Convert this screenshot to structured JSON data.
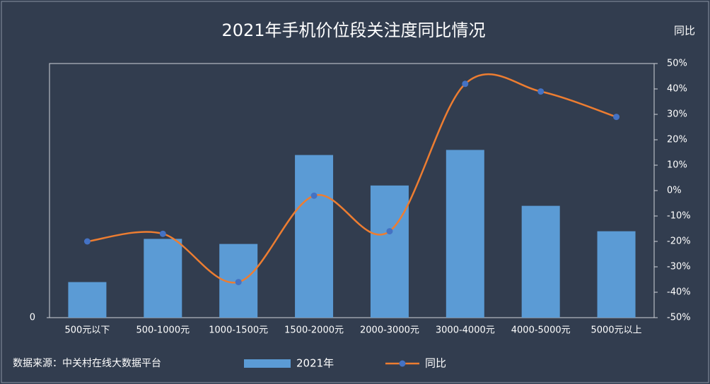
{
  "chart_data": {
    "type": "bar-line",
    "title": "2021年手机价位段关注度同比情况",
    "y2label": "同比",
    "source": "数据来源：中关村在线大数据平台",
    "categories": [
      "500元以下",
      "500-1000元",
      "1000-1500元",
      "1500-2000元",
      "2000-3000元",
      "3000-4000元",
      "4000-5000元",
      "5000元以上"
    ],
    "series": [
      {
        "name": "2021年",
        "type": "bar",
        "color": "#5b9bd5",
        "values": [
          14,
          31,
          29,
          64,
          52,
          66,
          44,
          34
        ]
      },
      {
        "name": "同比",
        "type": "line",
        "axis": "y2",
        "color": "#ed7d31",
        "marker_color": "#4472c4",
        "values": [
          -20,
          -17,
          -36,
          -2,
          -16,
          42,
          39,
          29
        ]
      }
    ],
    "ylim": [
      0,
      100
    ],
    "yticks": [
      0
    ],
    "y2lim": [
      -50,
      50
    ],
    "y2ticks": [
      {
        "value": 50,
        "label": "50%"
      },
      {
        "value": 40,
        "label": "40%"
      },
      {
        "value": 30,
        "label": "30%"
      },
      {
        "value": 20,
        "label": "20%"
      },
      {
        "value": 10,
        "label": "10%"
      },
      {
        "value": 0,
        "label": "0%"
      },
      {
        "value": -10,
        "label": "-10%"
      },
      {
        "value": -20,
        "label": "-20%"
      },
      {
        "value": -30,
        "label": "-30%"
      },
      {
        "value": -40,
        "label": "-40%"
      },
      {
        "value": -50,
        "label": "-50%"
      }
    ],
    "smooth": true,
    "legend": "bottom"
  }
}
